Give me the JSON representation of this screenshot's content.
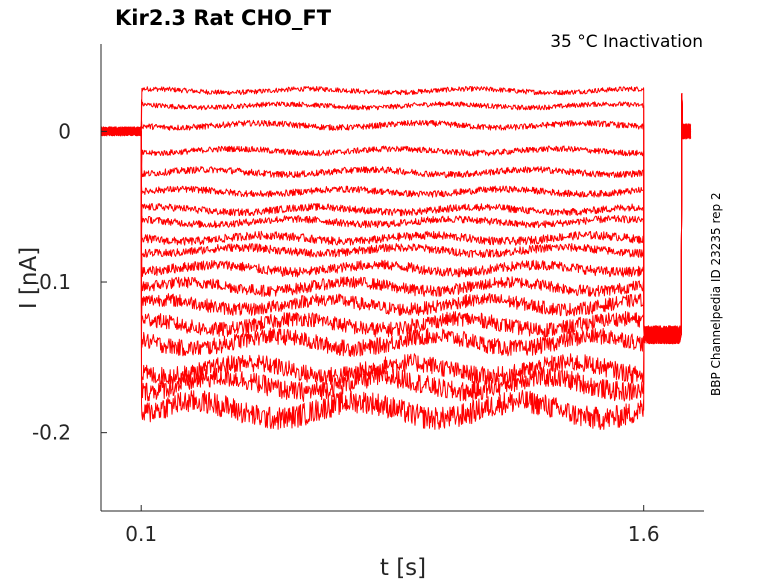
{
  "chart_data": {
    "type": "line",
    "title": "Kir2.3  Rat  CHO_FT",
    "subtitle": "35 °C  Inactivation",
    "side_note": "BBP Channelpedia ID 23235 rep 2",
    "xlabel": "t [s]",
    "ylabel": "I [nA]",
    "xlim": [
      -0.02,
      1.78
    ],
    "ylim": [
      -0.252,
      0.058
    ],
    "x_ticks": [
      {
        "value": 0.1,
        "label": "0.1"
      },
      {
        "value": 1.6,
        "label": "1.6"
      }
    ],
    "y_ticks": [
      {
        "value": 0,
        "label": "0"
      },
      {
        "value": -0.1,
        "label": "-0.1"
      },
      {
        "value": -0.2,
        "label": "-0.2"
      }
    ],
    "grid": false,
    "line_color": "#ff0000",
    "protocol": {
      "baseline_end": 0.1,
      "step_end": 1.6,
      "record_end": 1.74,
      "holding_current": 0.0,
      "tail_current": -0.135
    },
    "series": [
      {
        "step_current": 0.027,
        "noise": 0.0015
      },
      {
        "step_current": 0.017,
        "noise": 0.0015
      },
      {
        "step_current": 0.004,
        "noise": 0.0018
      },
      {
        "step_current": -0.013,
        "noise": 0.0018
      },
      {
        "step_current": -0.027,
        "noise": 0.002
      },
      {
        "step_current": -0.04,
        "noise": 0.002
      },
      {
        "step_current": -0.052,
        "noise": 0.0022
      },
      {
        "step_current": -0.06,
        "noise": 0.0022
      },
      {
        "step_current": -0.071,
        "noise": 0.0025
      },
      {
        "step_current": -0.079,
        "noise": 0.0025
      },
      {
        "step_current": -0.091,
        "noise": 0.003
      },
      {
        "step_current": -0.103,
        "noise": 0.0035
      },
      {
        "step_current": -0.115,
        "noise": 0.004
      },
      {
        "step_current": -0.128,
        "noise": 0.0045
      },
      {
        "step_current": -0.14,
        "noise": 0.005
      },
      {
        "step_current": -0.158,
        "noise": 0.0055
      },
      {
        "step_current": -0.168,
        "noise": 0.006
      },
      {
        "step_current": -0.185,
        "noise": 0.007
      }
    ]
  }
}
